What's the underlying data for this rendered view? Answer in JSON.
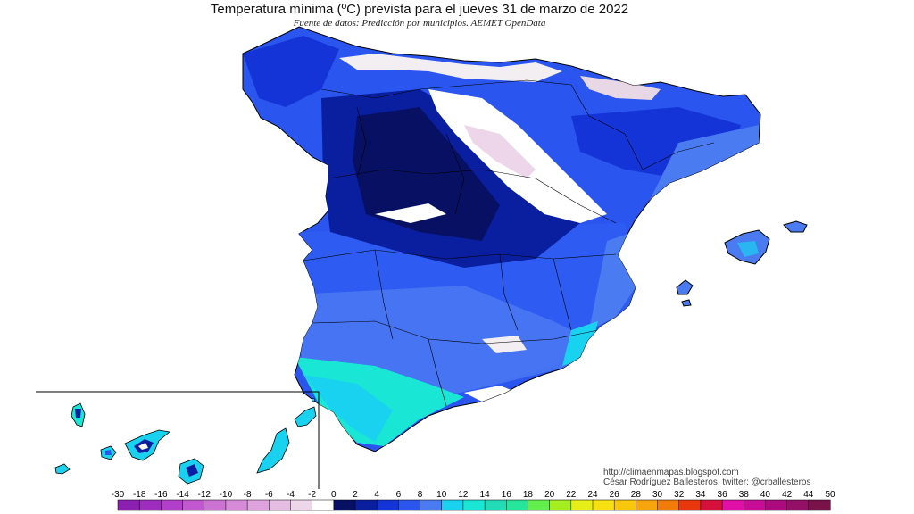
{
  "title": "Temperatura mínima (ºC) prevista para el jueves 31 de marzo de 2022",
  "subtitle": "Fuente de datos: Predicción por municipios. AEMET OpenData",
  "credits": {
    "url": "http://climaenmapas.blogspot.com",
    "author": "César Rodríguez Ballesteros, twitter: @crballesteros"
  },
  "legend": {
    "ticks": [
      "-30",
      "-18",
      "-16",
      "-14",
      "-12",
      "-10",
      "-8",
      "-6",
      "-4",
      "-2",
      "0",
      "2",
      "4",
      "6",
      "8",
      "10",
      "12",
      "14",
      "16",
      "18",
      "20",
      "22",
      "24",
      "26",
      "28",
      "30",
      "32",
      "34",
      "36",
      "38",
      "40",
      "42",
      "44",
      "50"
    ],
    "colors": [
      "#8a1fb0",
      "#9d2cbf",
      "#b23fc9",
      "#c158cf",
      "#cc72d3",
      "#d68ad8",
      "#dea3dc",
      "#e6bde2",
      "#eed6ea",
      "#ffffff",
      "#071063",
      "#0a1fa0",
      "#1434d8",
      "#2a55ee",
      "#4b7bf0",
      "#19d2f0",
      "#1ae6d6",
      "#22dcb8",
      "#25e69a",
      "#62ef4c",
      "#a4ee20",
      "#e5ee16",
      "#f7e012",
      "#f8c70c",
      "#f6a50c",
      "#f17c0a",
      "#e9360c",
      "#d5103a",
      "#e10ea8",
      "#c80c95",
      "#ae0a7f",
      "#931066",
      "#7a134a"
    ]
  },
  "map_legend_colors": {
    "below_neg2": "#e8d8e6",
    "neg2_0": "#ffffff",
    "0_2": "#071063",
    "2_4": "#0a1fa0",
    "4_6": "#1434d8",
    "6_8": "#2a55ee",
    "8_10": "#4b7bf0",
    "10_12": "#19d2f0",
    "12_14": "#1ae6d6",
    "sea": "#ffffff"
  }
}
